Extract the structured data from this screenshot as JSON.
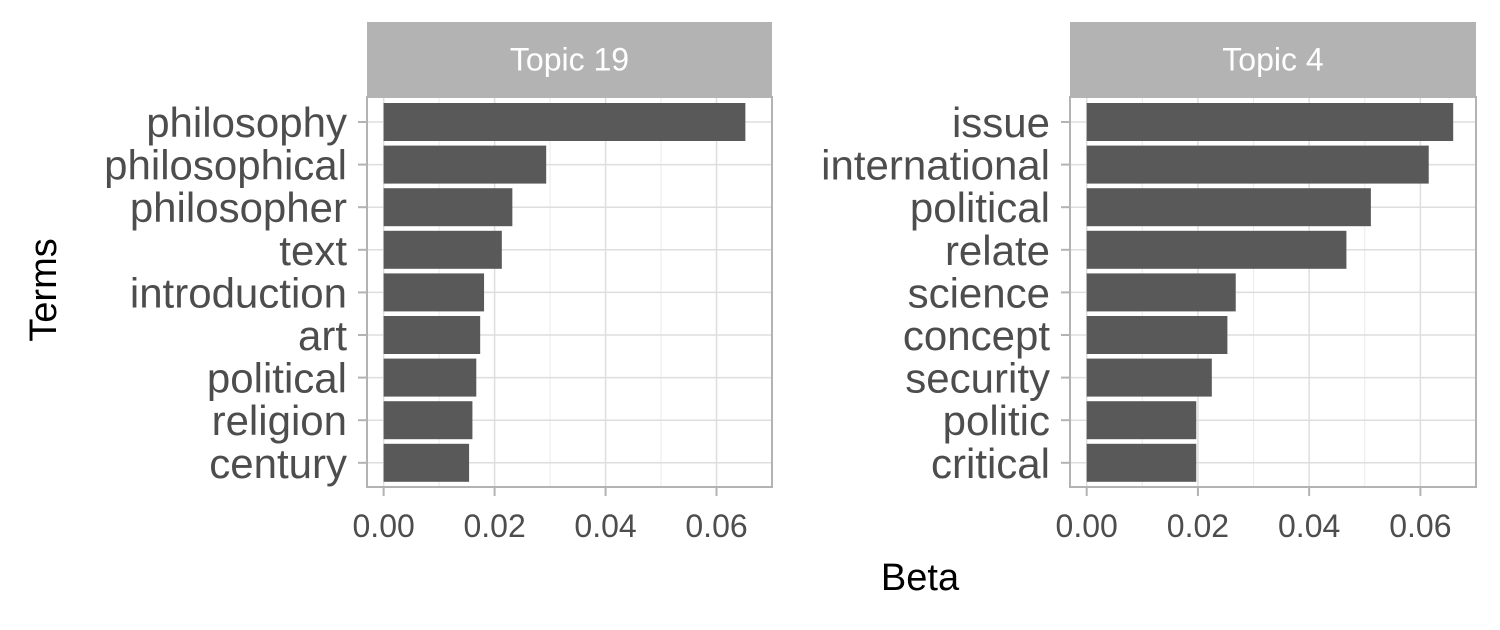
{
  "figure": {
    "xlabel": "Beta",
    "ylabel": "Terms"
  },
  "colors": {
    "bar": "#595959",
    "strip_bg": "#b3b3b3",
    "strip_text": "#ffffff",
    "grid": "#dedede",
    "panel_border": "#b3b3b3",
    "tick_text": "#4d4d4d",
    "axis_title": "#000000"
  },
  "chart_data": [
    {
      "type": "bar",
      "orientation": "horizontal",
      "title": "Topic 19",
      "categories": [
        "philosophy",
        "philosophical",
        "philosopher",
        "text",
        "introduction",
        "art",
        "political",
        "religion",
        "century"
      ],
      "values": [
        0.0652,
        0.0293,
        0.0232,
        0.0213,
        0.0181,
        0.0174,
        0.0167,
        0.016,
        0.0154
      ],
      "xlim": [
        -0.003,
        0.07
      ],
      "xticks": [
        0.0,
        0.02,
        0.04,
        0.06
      ],
      "xtick_labels": [
        "0.00",
        "0.02",
        "0.04",
        "0.06"
      ],
      "grid": true
    },
    {
      "type": "bar",
      "orientation": "horizontal",
      "title": "Topic 4",
      "categories": [
        "issue",
        "international",
        "political",
        "relate",
        "science",
        "concept",
        "security",
        "politic",
        "critical"
      ],
      "values": [
        0.0659,
        0.0615,
        0.0511,
        0.0467,
        0.0268,
        0.0253,
        0.0225,
        0.0197,
        0.0197
      ],
      "xlim": [
        -0.003,
        0.07
      ],
      "xticks": [
        0.0,
        0.02,
        0.04,
        0.06
      ],
      "xtick_labels": [
        "0.00",
        "0.02",
        "0.04",
        "0.06"
      ],
      "grid": true
    }
  ]
}
